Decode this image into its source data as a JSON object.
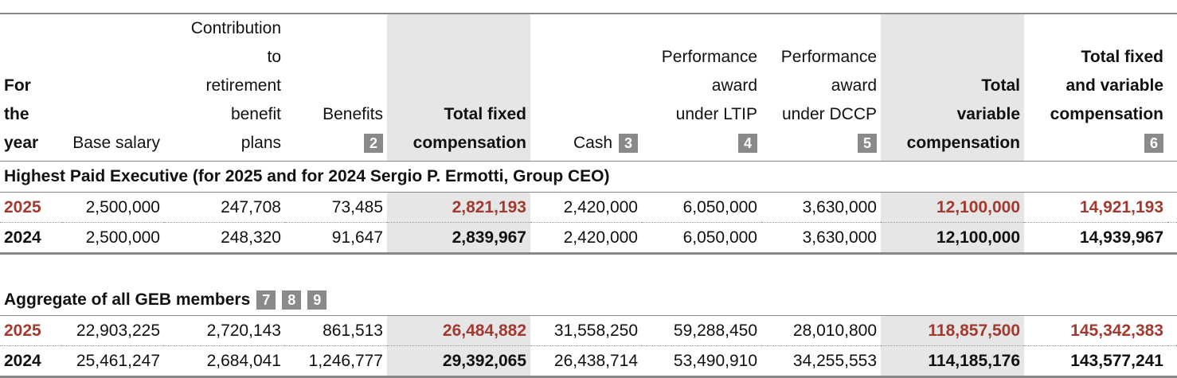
{
  "headers": {
    "year": [
      "For",
      "the",
      "year"
    ],
    "base_salary": "Base salary",
    "contribution": [
      "Contribution",
      "to",
      "retirement",
      "benefit",
      "plans"
    ],
    "benefits": "Benefits",
    "benefits_note": "2",
    "total_fixed": [
      "Total fixed",
      "compensation"
    ],
    "cash": "Cash",
    "cash_note": "3",
    "ltip": [
      "Performance",
      "award",
      "under LTIP"
    ],
    "ltip_note": "4",
    "dccp": [
      "Performance",
      "award",
      "under DCCP"
    ],
    "dccp_note": "5",
    "total_variable": [
      "Total",
      "variable",
      "compensation"
    ],
    "total_fixed_variable": [
      "Total fixed",
      "and variable",
      "compensation"
    ],
    "total_fixed_variable_note": "6"
  },
  "sections": [
    {
      "title": "Highest Paid Executive (for 2025 and for 2024 Sergio P. Ermotti, Group CEO)",
      "notes": [],
      "rows": [
        {
          "year": "2025",
          "base": "2,500,000",
          "contrib": "247,708",
          "benefits": "73,485",
          "total_fixed": "2,821,193",
          "cash": "2,420,000",
          "ltip": "6,050,000",
          "dccp": "3,630,000",
          "total_var": "12,100,000",
          "total_all": "14,921,193"
        },
        {
          "year": "2024",
          "base": "2,500,000",
          "contrib": "248,320",
          "benefits": "91,647",
          "total_fixed": "2,839,967",
          "cash": "2,420,000",
          "ltip": "6,050,000",
          "dccp": "3,630,000",
          "total_var": "12,100,000",
          "total_all": "14,939,967"
        }
      ]
    },
    {
      "title": "Aggregate of all GEB members",
      "notes": [
        "7",
        "8",
        "9"
      ],
      "rows": [
        {
          "year": "2025",
          "base": "22,903,225",
          "contrib": "2,720,143",
          "benefits": "861,513",
          "total_fixed": "26,484,882",
          "cash": "31,558,250",
          "ltip": "59,288,450",
          "dccp": "28,010,800",
          "total_var": "118,857,500",
          "total_all": "145,342,383"
        },
        {
          "year": "2024",
          "base": "25,461,247",
          "contrib": "2,684,041",
          "benefits": "1,246,777",
          "total_fixed": "29,392,065",
          "cash": "26,438,714",
          "ltip": "53,490,910",
          "dccp": "34,255,553",
          "total_var": "114,185,176",
          "total_all": "143,577,241"
        }
      ]
    }
  ],
  "colors": {
    "accent_red": "#a3392f",
    "shade": "#e6e6e6",
    "badge": "#8a8a8a"
  }
}
